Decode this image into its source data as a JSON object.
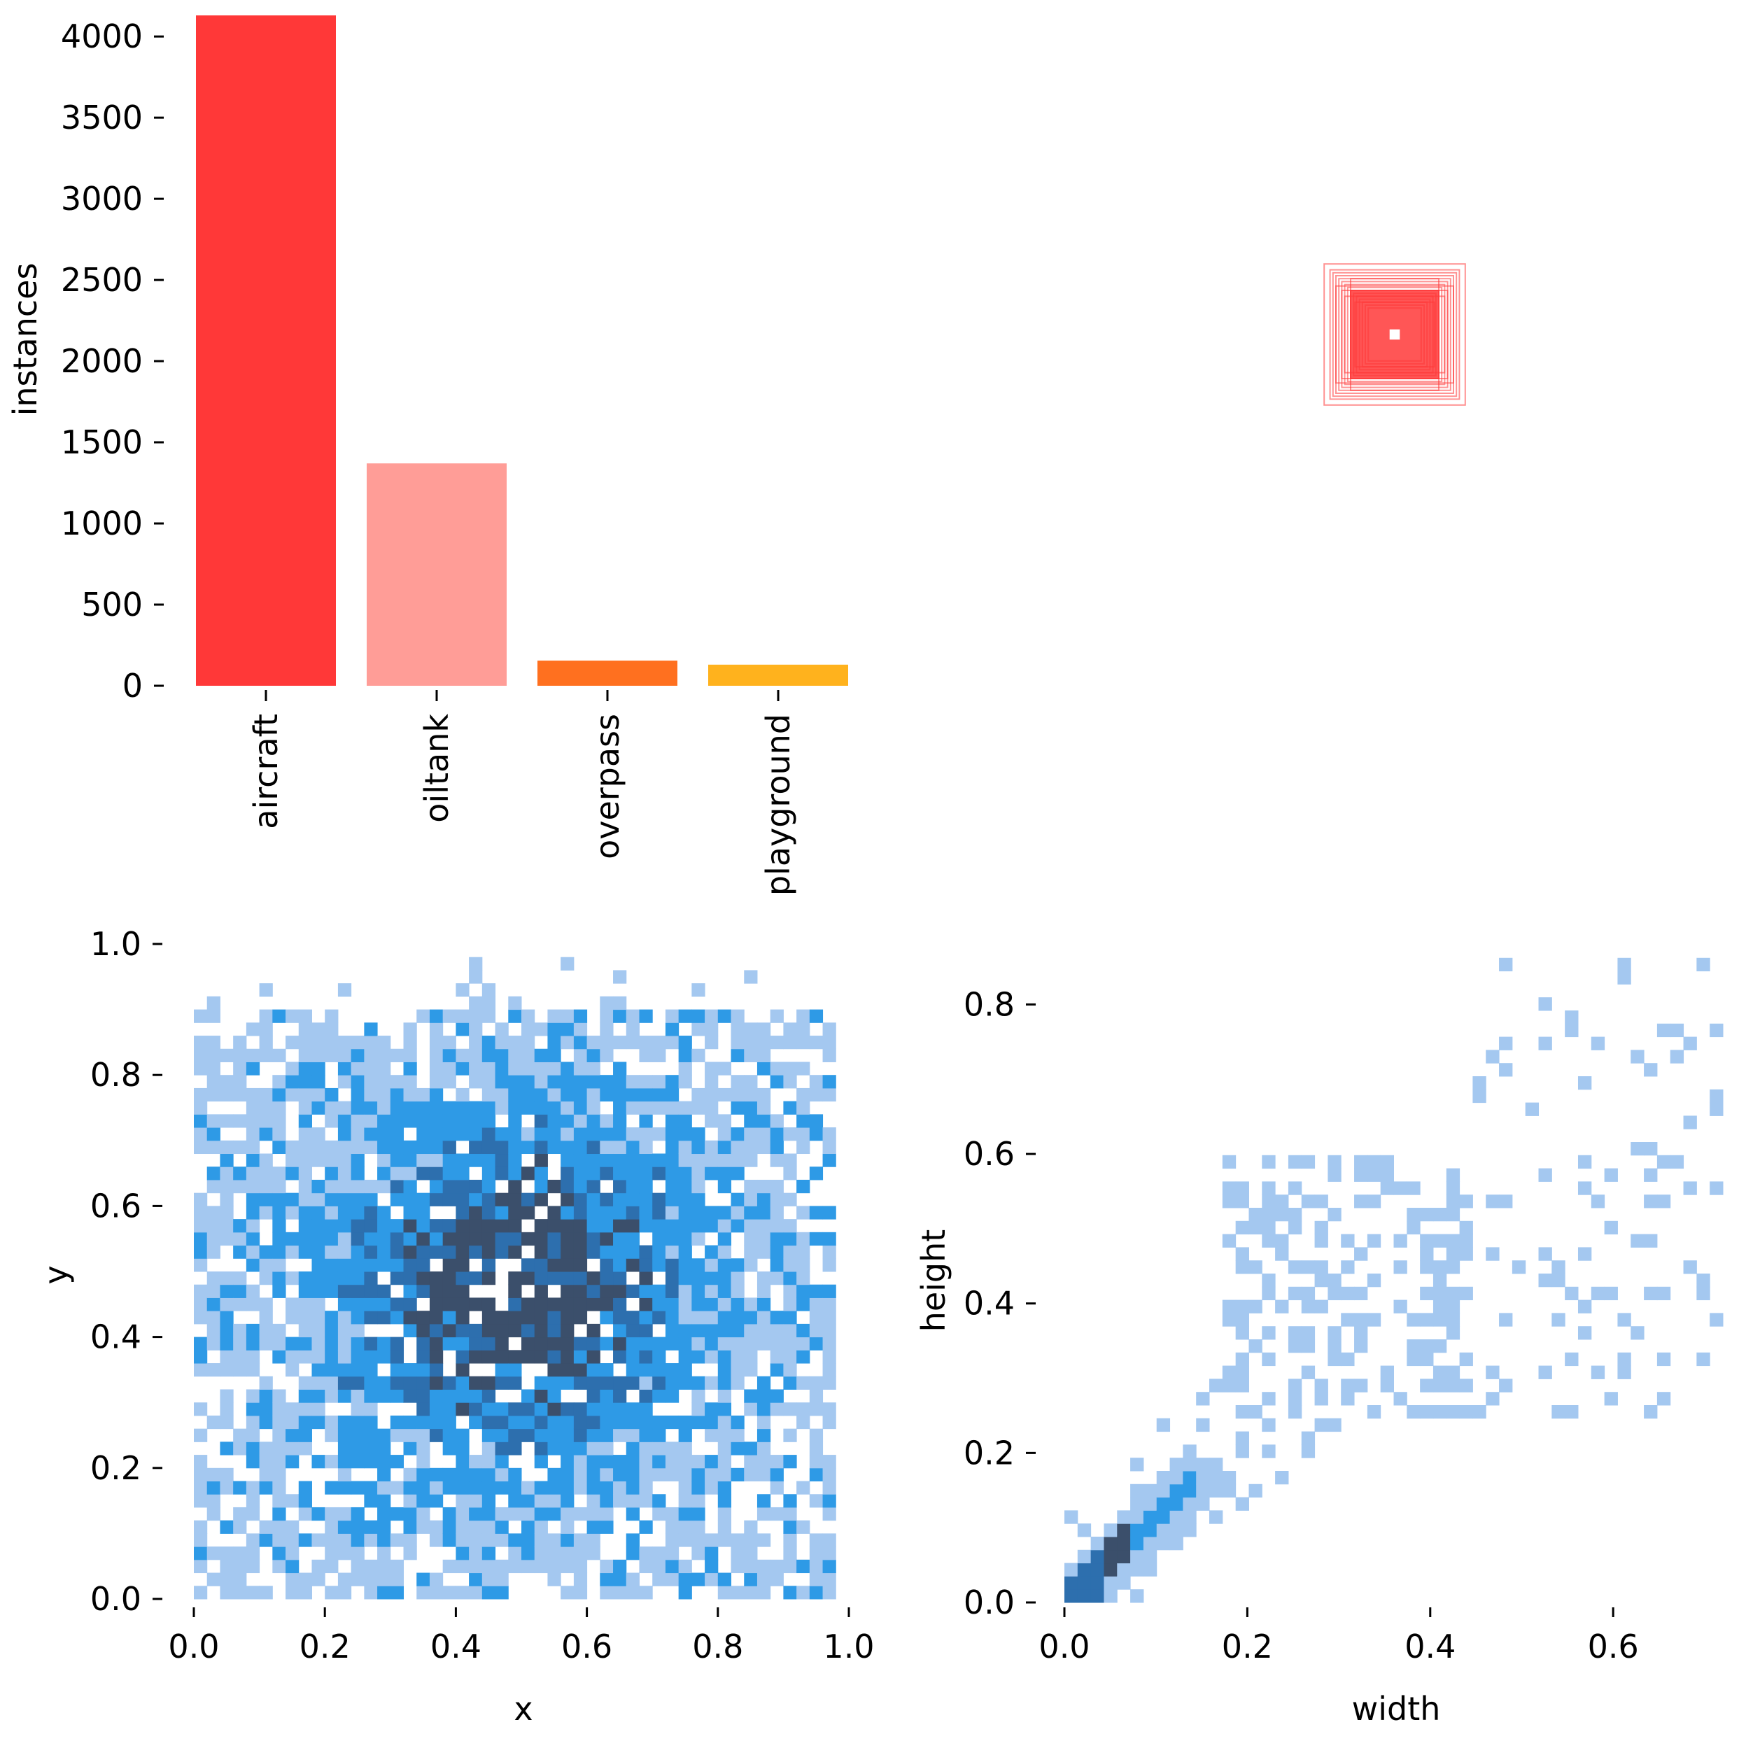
{
  "chart_data": [
    {
      "type": "bar",
      "title": "",
      "xlabel": "",
      "ylabel": "instances",
      "categories": [
        "aircraft",
        "oiltank",
        "overpass",
        "playground"
      ],
      "values": [
        4130,
        1370,
        155,
        130
      ],
      "colors": [
        "#ff3838",
        "#ff9d97",
        "#ff701f",
        "#ffb21d"
      ],
      "ylim": [
        0,
        4130
      ],
      "yticks": [
        0,
        500,
        1000,
        1500,
        2000,
        2500,
        3000,
        3500,
        4000
      ],
      "ytick_labels": [
        "0",
        "500",
        "1000",
        "1500",
        "2000",
        "2500",
        "3000",
        "3500",
        "4000"
      ],
      "grid": false
    },
    {
      "type": "other",
      "description_type": "box-overlay",
      "colors": [
        "#ff3838"
      ],
      "boxes_wh": [
        [
          0.48,
          0.48
        ],
        [
          0.44,
          0.44
        ],
        [
          0.42,
          0.42
        ],
        [
          0.4,
          0.4
        ],
        [
          0.38,
          0.38
        ],
        [
          0.36,
          0.36
        ],
        [
          0.34,
          0.34
        ],
        [
          0.32,
          0.32
        ],
        [
          0.3,
          0.3
        ],
        [
          0.28,
          0.28
        ],
        [
          0.26,
          0.26
        ],
        [
          0.24,
          0.24
        ],
        [
          0.22,
          0.22
        ],
        [
          0.2,
          0.2
        ],
        [
          0.18,
          0.18
        ],
        [
          0.34,
          0.26
        ],
        [
          0.3,
          0.38
        ],
        [
          0.4,
          0.33
        ],
        [
          0.27,
          0.22
        ],
        [
          0.36,
          0.3
        ],
        [
          0.03,
          0.03
        ]
      ]
    },
    {
      "type": "heatmap",
      "xlabel": "x",
      "ylabel": "y",
      "xlim": [
        0.0,
        1.0
      ],
      "ylim": [
        0.0,
        1.0
      ],
      "xticks": [
        "0.0",
        "0.2",
        "0.4",
        "0.6",
        "0.8",
        "1.0"
      ],
      "yticks": [
        "0.0",
        "0.2",
        "0.4",
        "0.6",
        "0.8",
        "1.0"
      ],
      "bins": 50,
      "center": [
        0.49,
        0.47
      ],
      "colors": [
        "#a4c8f0",
        "#2e9ae6",
        "#2d6fae",
        "#3b4f6b"
      ]
    },
    {
      "type": "heatmap",
      "xlabel": "width",
      "ylabel": "height",
      "xlim": [
        0.0,
        0.72
      ],
      "ylim": [
        0.0,
        0.88
      ],
      "xticks": [
        "0.0",
        "0.2",
        "0.4",
        "0.6"
      ],
      "yticks": [
        "0.0",
        "0.2",
        "0.4",
        "0.6",
        "0.8"
      ],
      "bins": 50,
      "colors": [
        "#a4c8f0",
        "#2e9ae6",
        "#2d6fae",
        "#3b4f6b"
      ]
    }
  ]
}
